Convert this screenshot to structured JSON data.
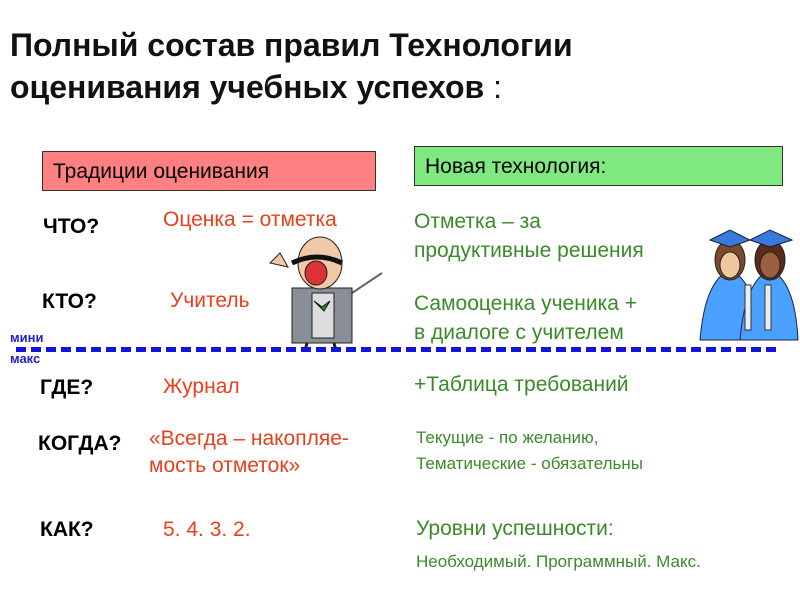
{
  "title": {
    "line1": "Полный состав правил Технологии",
    "line2": "оценивания учебных успехов",
    "colon": " :"
  },
  "headers": {
    "traditional": "Традиции оценивания",
    "new": "Новая технология:"
  },
  "colors": {
    "traditional_box": "#ff8080",
    "new_box": "#80e880",
    "red_text": "#e8401c",
    "green_text": "#3a8a2a",
    "divider": "#1414e0"
  },
  "divider": {
    "top_label": "мини",
    "bottom_label": "макс"
  },
  "rows": [
    {
      "question": "ЧТО?",
      "traditional": "Оценка = отметка",
      "new": [
        "Отметка – за",
        "продуктивные решения"
      ]
    },
    {
      "question": "КТО?",
      "traditional": "Учитель",
      "new": [
        "Самооценка ученика +",
        "в диалоге с учителем"
      ]
    },
    {
      "question": "ГДЕ?",
      "traditional": "Журнал",
      "new": [
        "+Таблица требований"
      ]
    },
    {
      "question": "КОГДА?",
      "traditional": [
        "«Всегда – накопляе-",
        "мость отметок»"
      ],
      "new": [
        "Текущие - по желанию,",
        "Тематические - обязательны"
      ]
    },
    {
      "question": "КАК?",
      "traditional": "5. 4. 3. 2.",
      "new": [
        "Уровни успешности:",
        "Необходимый. Программный. Макс."
      ]
    }
  ],
  "illustrations": {
    "left": "teacher-clipart",
    "right": "graduates-clipart"
  }
}
